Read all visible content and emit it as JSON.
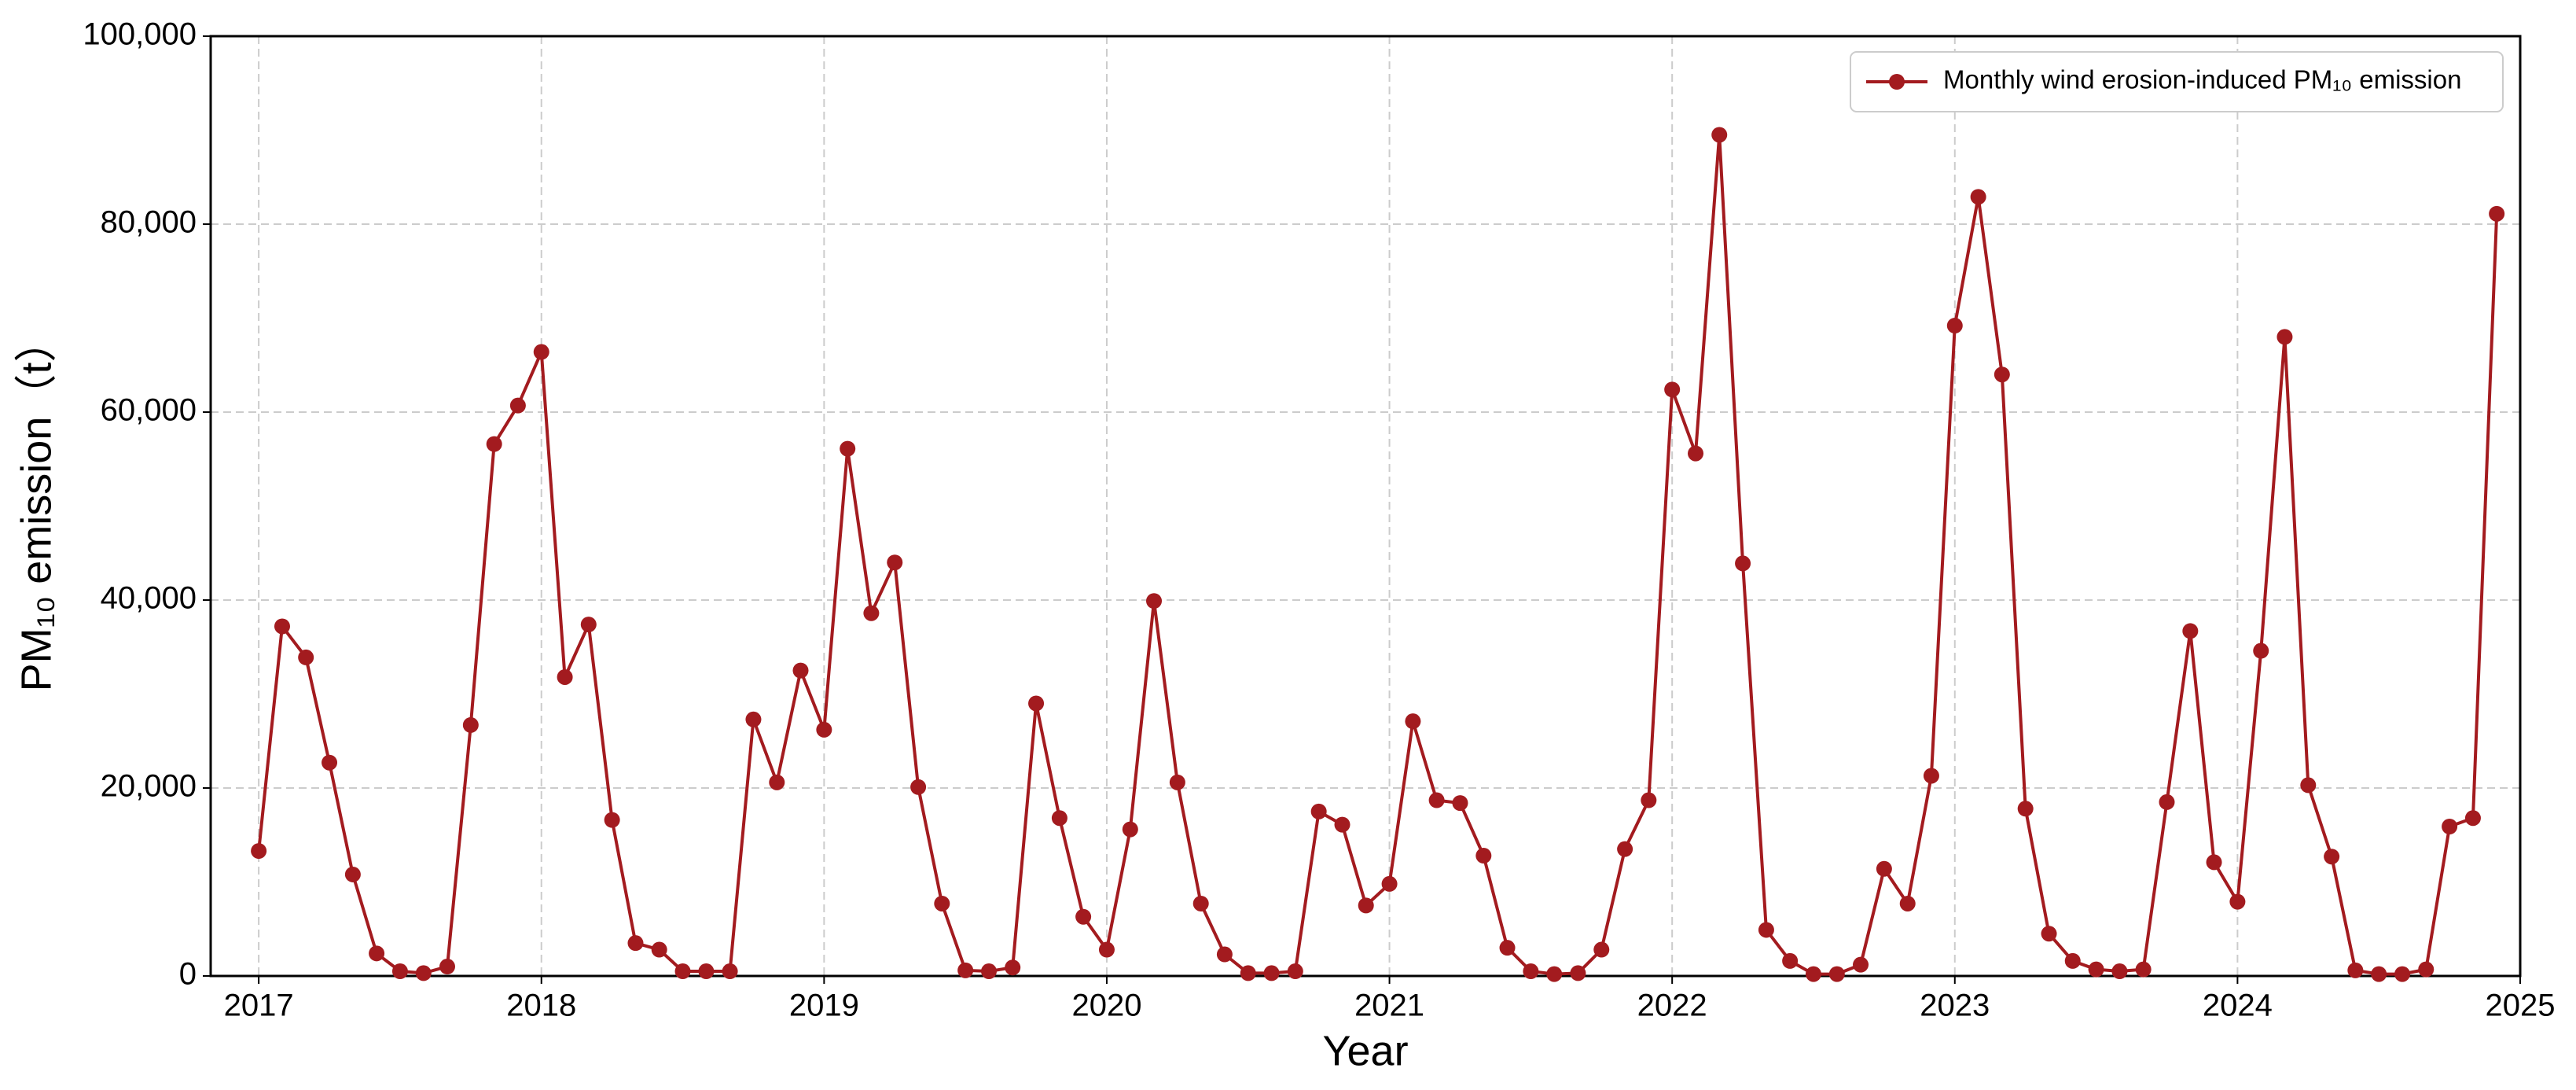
{
  "chart_data": {
    "type": "line",
    "xlabel": "Year",
    "ylabel": "PM₁₀ emission（t）",
    "x": [
      2017,
      2017.083,
      2017.167,
      2017.25,
      2017.333,
      2017.417,
      2017.5,
      2017.583,
      2017.667,
      2017.75,
      2017.833,
      2017.917,
      2018,
      2018.083,
      2018.167,
      2018.25,
      2018.333,
      2018.417,
      2018.5,
      2018.583,
      2018.667,
      2018.75,
      2018.833,
      2018.917,
      2019,
      2019.083,
      2019.167,
      2019.25,
      2019.333,
      2019.417,
      2019.5,
      2019.583,
      2019.667,
      2019.75,
      2019.833,
      2019.917,
      2020,
      2020.083,
      2020.167,
      2020.25,
      2020.333,
      2020.417,
      2020.5,
      2020.583,
      2020.667,
      2020.75,
      2020.833,
      2020.917,
      2021,
      2021.083,
      2021.167,
      2021.25,
      2021.333,
      2021.417,
      2021.5,
      2021.583,
      2021.667,
      2021.75,
      2021.833,
      2021.917,
      2022,
      2022.083,
      2022.167,
      2022.25,
      2022.333,
      2022.417,
      2022.5,
      2022.583,
      2022.667,
      2022.75,
      2022.833,
      2022.917,
      2023,
      2023.083,
      2023.167,
      2023.25,
      2023.333,
      2023.417,
      2023.5,
      2023.583,
      2023.667,
      2023.75,
      2023.833,
      2023.917,
      2024,
      2024.083,
      2024.167,
      2024.25,
      2024.333,
      2024.417,
      2024.5,
      2024.583,
      2024.667,
      2024.75,
      2024.833,
      2024.917
    ],
    "series": [
      {
        "name": "Monthly wind erosion-induced PM₁₀ emission",
        "color": "#a31b1f",
        "values": [
          13300,
          37200,
          33900,
          22700,
          10800,
          2400,
          500,
          300,
          1000,
          26700,
          56600,
          60700,
          66400,
          31800,
          37400,
          16600,
          3500,
          2800,
          500,
          500,
          500,
          27300,
          20600,
          32500,
          26200,
          56100,
          38600,
          44000,
          20100,
          7700,
          600,
          500,
          900,
          29000,
          16800,
          6300,
          2800,
          15600,
          39900,
          20600,
          7700,
          2300,
          300,
          300,
          500,
          17500,
          16100,
          7500,
          9800,
          27100,
          18700,
          18400,
          12800,
          3000,
          500,
          200,
          300,
          2800,
          13500,
          18700,
          62400,
          55600,
          89500,
          43900,
          4900,
          1600,
          200,
          200,
          1200,
          11400,
          7700,
          21300,
          69200,
          82900,
          64000,
          17800,
          4500,
          1600,
          700,
          500,
          700,
          18500,
          36700,
          12100,
          7900,
          34600,
          68000,
          20300,
          12700,
          600,
          200,
          200,
          700,
          15900,
          16800,
          81100
        ]
      }
    ],
    "xlim": [
      2016.83,
      2025
    ],
    "xticks": [
      2017,
      2018,
      2019,
      2020,
      2021,
      2022,
      2023,
      2024,
      2025
    ],
    "ylim": [
      0,
      100000
    ],
    "yticks": [
      0,
      {
        "value": 20000,
        "label": "20,000"
      },
      {
        "value": 40000,
        "label": "40,000"
      },
      {
        "value": 60000,
        "label": "60,000"
      },
      {
        "value": 80000,
        "label": "80,000"
      },
      {
        "value": 100000,
        "label": "100,000"
      }
    ],
    "grid": true,
    "legend": "upper right"
  }
}
